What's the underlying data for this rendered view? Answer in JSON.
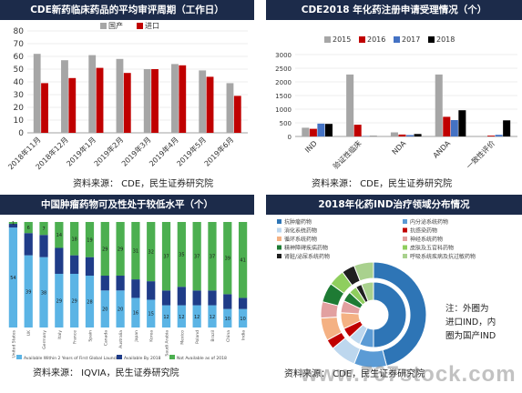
{
  "panels": [
    {
      "title": "CDE新药临床药品的平均审评周期（工作日）",
      "source": "资料来源：  CDE，民生证券研究院"
    },
    {
      "title": "CDE2018 年化药注册申请受理情况（个）",
      "source": "资料来源：  CDE，民生证券研究院"
    },
    {
      "title": "中国肿瘤药物可及性处于较低水平（个）",
      "source": "资料来源：  IQVIA，民生证券研究院"
    },
    {
      "title": "2018年化药IND治疗领域分布情况",
      "source": "资料来源：  CDE，民生证券研究院"
    }
  ],
  "note": {
    "lines": [
      "注：外圈为",
      "进口IND，内",
      "圈为国产IND"
    ]
  },
  "watermark": "www.767stock.com",
  "colors": {
    "banner": "#1c2b4a",
    "grey": "#a6a6a6",
    "red": "#c00000",
    "blue": "#4472c4",
    "navy": "#1f3864",
    "black": "#000000",
    "light_blue": "#5bb4e5",
    "dark_blue": "#1f3c88",
    "green": "#4caf50"
  },
  "chart_data": [
    {
      "type": "bar",
      "title": "CDE新药临床药品的平均审评周期（工作日）",
      "categories": [
        "2018年11月",
        "2018年12月",
        "2019年1月",
        "2019年2月",
        "2019年3月",
        "2019年4月",
        "2019年5月",
        "2019年6月"
      ],
      "series": [
        {
          "name": "国产",
          "color": "#a6a6a6",
          "values": [
            62,
            57,
            61,
            58,
            50,
            54,
            49,
            39
          ]
        },
        {
          "name": "进口",
          "color": "#c00000",
          "values": [
            39,
            43,
            51,
            47,
            50,
            53,
            44,
            29
          ]
        }
      ],
      "ylim": [
        0,
        80
      ],
      "yticks": [
        0,
        10,
        20,
        30,
        40,
        50,
        60,
        70,
        80
      ],
      "legend": "top"
    },
    {
      "type": "bar",
      "title": "CDE2018 年化药注册申请受理情况（个）",
      "categories": [
        "IND",
        "验证性临床",
        "NDA",
        "ANDA",
        "一致性评价"
      ],
      "series": [
        {
          "name": "2015",
          "color": "#a6a6a6",
          "values": [
            320,
            2270,
            150,
            2270,
            0
          ]
        },
        {
          "name": "2016",
          "color": "#c00000",
          "values": [
            280,
            430,
            70,
            720,
            30
          ]
        },
        {
          "name": "2017",
          "color": "#4472c4",
          "values": [
            470,
            10,
            50,
            600,
            60
          ]
        },
        {
          "name": "2018",
          "color": "#000000",
          "values": [
            460,
            10,
            90,
            960,
            590
          ]
        }
      ],
      "ylim": [
        0,
        3000
      ],
      "yticks": [
        0,
        500,
        1000,
        1500,
        2000,
        2500,
        3000
      ],
      "legend": "top"
    },
    {
      "type": "bar",
      "stacked": true,
      "title": "中国肿瘤药物可及性处于较低水平（个）",
      "categories": [
        "United States",
        "UK",
        "Germany",
        "Italy",
        "France",
        "Spain",
        "Canada",
        "Australia",
        "Japan",
        "Korea",
        "Saudi Arabia",
        "Mexico",
        "Poland",
        "Brazil",
        "China",
        "India"
      ],
      "series": [
        {
          "name": "Available Within 2 Years of First Global Launch",
          "color": "#5bb4e5",
          "values": [
            54,
            39,
            38,
            29,
            29,
            28,
            20,
            20,
            16,
            15,
            12,
            12,
            12,
            12,
            10,
            10
          ]
        },
        {
          "name": "Available By 2018",
          "color": "#1f3c88",
          "values": [
            2,
            12,
            12,
            14,
            10,
            10,
            8,
            8,
            10,
            10,
            8,
            10,
            8,
            8,
            8,
            6
          ]
        },
        {
          "name": "Not Available as of 2018",
          "color": "#4caf50",
          "values": [
            1,
            6,
            7,
            14,
            18,
            19,
            29,
            29,
            31,
            32,
            37,
            35,
            37,
            37,
            39,
            41
          ]
        }
      ],
      "data_labels": [
        {
          "bottom": 54,
          "top": 1
        },
        {
          "bottom": 39,
          "top": 6
        },
        {
          "bottom": 38,
          "top": 7
        },
        {
          "bottom": 29,
          "top": 14
        },
        {
          "bottom": 29,
          "top": 18
        },
        {
          "bottom": 28,
          "top": 19
        },
        {
          "bottom": 20,
          "top": 29
        },
        {
          "bottom": 20,
          "top": 29
        },
        {
          "bottom": 16,
          "top": 31
        },
        {
          "bottom": 15,
          "top": 32
        },
        {
          "bottom": 12,
          "top": 37
        },
        {
          "bottom": 12,
          "top": 35
        },
        {
          "bottom": 12,
          "top": 37
        },
        {
          "bottom": 12,
          "top": 37
        },
        {
          "bottom": 10,
          "top": 39
        },
        {
          "bottom": 10,
          "top": 41
        }
      ],
      "legend": "bottom"
    },
    {
      "type": "pie",
      "donut": true,
      "title": "2018年化药IND治疗领域分布情况",
      "categories": [
        "抗肿瘤药物",
        "内分泌系统药物",
        "消化系统药物",
        "抗感染药物",
        "循环系统药物",
        "神经系统药物",
        "精神障碍疾病药物",
        "皮肤及五官科药物",
        "肾脏/泌尿系统药物",
        "呼吸系统疾病及抗过敏药物"
      ],
      "colors": [
        "#2e75b6",
        "#5b9bd5",
        "#bdd7ee",
        "#c00000",
        "#f4b183",
        "#e2a0a0",
        "#1e7b34",
        "#8fce5e",
        "#1f1f1f",
        "#a9d18e"
      ],
      "series": [
        {
          "name": "外圈",
          "values": [
            46,
            10,
            8,
            3,
            7,
            5,
            6,
            5,
            4,
            6
          ]
        },
        {
          "name": "内圈",
          "values": [
            50,
            7,
            6,
            5,
            8,
            6,
            5,
            4,
            3,
            6
          ]
        }
      ],
      "legend": "top-left"
    }
  ]
}
